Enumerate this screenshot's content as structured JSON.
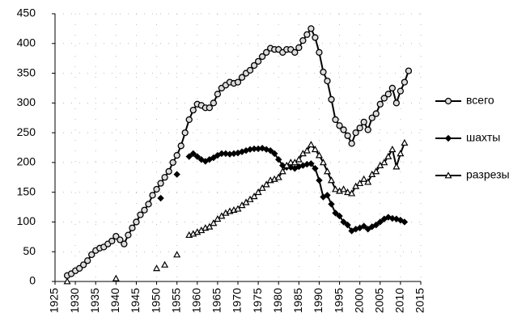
{
  "chart_data": {
    "type": "line",
    "x": [
      1928,
      1929,
      1930,
      1931,
      1932,
      1933,
      1934,
      1935,
      1936,
      1937,
      1938,
      1939,
      1940,
      1941,
      1942,
      1943,
      1944,
      1945,
      1946,
      1947,
      1948,
      1949,
      1950,
      1951,
      1952,
      1953,
      1954,
      1955,
      1956,
      1957,
      1958,
      1959,
      1960,
      1961,
      1962,
      1963,
      1964,
      1965,
      1966,
      1967,
      1968,
      1969,
      1970,
      1971,
      1972,
      1973,
      1974,
      1975,
      1976,
      1977,
      1978,
      1979,
      1980,
      1981,
      1982,
      1983,
      1984,
      1985,
      1986,
      1987,
      1988,
      1989,
      1990,
      1991,
      1992,
      1993,
      1994,
      1995,
      1996,
      1997,
      1998,
      1999,
      2000,
      2001,
      2002,
      2003,
      2004,
      2005,
      2006,
      2007,
      2008,
      2009,
      2010,
      2011,
      2012
    ],
    "series": [
      {
        "name": "всего",
        "color": "#000000",
        "marker": "circle",
        "values": [
          10,
          13,
          18,
          22,
          28,
          35,
          45,
          52,
          56,
          58,
          63,
          68,
          76,
          70,
          63,
          78,
          90,
          100,
          112,
          120,
          130,
          145,
          155,
          165,
          175,
          185,
          200,
          212,
          228,
          250,
          272,
          288,
          298,
          296,
          292,
          292,
          300,
          315,
          325,
          330,
          335,
          333,
          335,
          343,
          350,
          355,
          363,
          370,
          378,
          385,
          392,
          390,
          390,
          385,
          390,
          390,
          385,
          393,
          405,
          415,
          425,
          410,
          385,
          352,
          337,
          306,
          272,
          262,
          255,
          245,
          232,
          250,
          258,
          268,
          255,
          275,
          282,
          298,
          308,
          315,
          325,
          300,
          320,
          335,
          354
        ]
      },
      {
        "name": "шахты",
        "color": "#000000",
        "marker": "diamond",
        "values": [
          null,
          null,
          null,
          null,
          null,
          null,
          null,
          null,
          null,
          null,
          null,
          null,
          null,
          null,
          null,
          null,
          null,
          null,
          null,
          null,
          null,
          null,
          null,
          140,
          null,
          null,
          null,
          180,
          null,
          null,
          210,
          215,
          210,
          205,
          202,
          205,
          208,
          212,
          215,
          215,
          214,
          215,
          216,
          218,
          220,
          222,
          223,
          223,
          224,
          222,
          220,
          215,
          205,
          195,
          192,
          192,
          190,
          193,
          195,
          197,
          198,
          190,
          170,
          142,
          145,
          130,
          115,
          110,
          100,
          95,
          85,
          88,
          90,
          93,
          88,
          92,
          95,
          100,
          105,
          108,
          106,
          105,
          103,
          100,
          null
        ]
      },
      {
        "name": "разрезы",
        "color": "#000000",
        "marker": "triangle",
        "values": [
          0,
          null,
          null,
          null,
          null,
          null,
          null,
          null,
          null,
          null,
          null,
          null,
          5,
          null,
          null,
          null,
          null,
          null,
          null,
          null,
          null,
          null,
          22,
          null,
          28,
          null,
          null,
          45,
          null,
          null,
          78,
          80,
          83,
          86,
          90,
          92,
          98,
          105,
          110,
          115,
          118,
          120,
          122,
          128,
          133,
          138,
          143,
          150,
          157,
          163,
          170,
          172,
          175,
          185,
          195,
          200,
          200,
          205,
          215,
          220,
          230,
          222,
          212,
          200,
          185,
          170,
          155,
          152,
          155,
          150,
          148,
          160,
          165,
          172,
          167,
          180,
          185,
          195,
          200,
          210,
          222,
          193,
          215,
          233,
          null
        ]
      }
    ],
    "xlim": [
      1925,
      2015
    ],
    "xticks": [
      1925,
      1930,
      1935,
      1940,
      1945,
      1950,
      1955,
      1960,
      1965,
      1970,
      1975,
      1980,
      1985,
      1990,
      1995,
      2000,
      2005,
      2010,
      2015
    ],
    "ylim": [
      0,
      450
    ],
    "yticks": [
      0,
      50,
      100,
      150,
      200,
      250,
      300,
      350,
      400,
      450
    ],
    "grid": true,
    "legend": "right"
  }
}
